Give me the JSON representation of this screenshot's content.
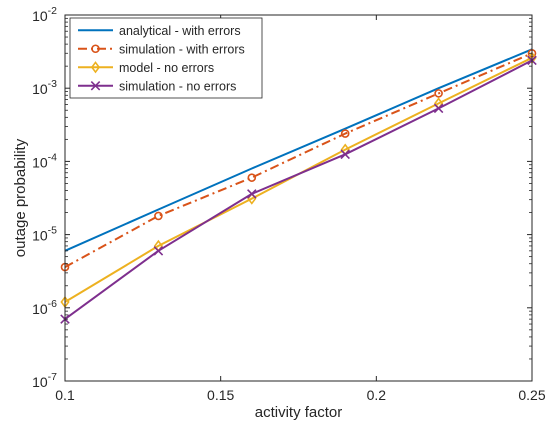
{
  "chart_data": {
    "type": "line",
    "title": "",
    "xlabel": "activity factor",
    "ylabel": "outage probability",
    "xlim": [
      0.1,
      0.25
    ],
    "ylim_exponent": [
      -7,
      -2
    ],
    "yscale": "log",
    "grid": false,
    "legend_position": "top-left",
    "x_ticks": [
      "0.1",
      "0.15",
      "0.2",
      "0.25"
    ],
    "y_ticks": [
      {
        "base": "10",
        "exp": "-7"
      },
      {
        "base": "10",
        "exp": "-6"
      },
      {
        "base": "10",
        "exp": "-5"
      },
      {
        "base": "10",
        "exp": "-4"
      },
      {
        "base": "10",
        "exp": "-3"
      },
      {
        "base": "10",
        "exp": "-2"
      }
    ],
    "series": [
      {
        "name": " analytical - with errors",
        "color": "#0072BD",
        "marker": "none",
        "line": "solid",
        "x": [
          0.1,
          0.13,
          0.16,
          0.19,
          0.22,
          0.25
        ],
        "y": [
          6e-06,
          2.2e-05,
          8e-05,
          0.00028,
          0.001,
          0.0034
        ]
      },
      {
        "name": "simulation - with errors",
        "color": "#D95319",
        "marker": "circle",
        "line": "dashdot",
        "x": [
          0.1,
          0.13,
          0.16,
          0.19,
          0.22,
          0.25
        ],
        "y": [
          3.6e-06,
          1.8e-05,
          6e-05,
          0.00024,
          0.00085,
          0.003
        ]
      },
      {
        "name": "model - no errors",
        "color": "#EDB120",
        "marker": "diamond",
        "line": "solid",
        "x": [
          0.1,
          0.13,
          0.16,
          0.19,
          0.22,
          0.25
        ],
        "y": [
          1.2e-06,
          7e-06,
          3.1e-05,
          0.000145,
          0.00062,
          0.0026
        ]
      },
      {
        "name": "simulation - no errors",
        "color": "#7E2F8E",
        "marker": "x",
        "line": "solid",
        "x": [
          0.1,
          0.13,
          0.16,
          0.19,
          0.22,
          0.25
        ],
        "y": [
          7e-07,
          6e-06,
          3.6e-05,
          0.000125,
          0.00053,
          0.0024
        ]
      }
    ]
  }
}
